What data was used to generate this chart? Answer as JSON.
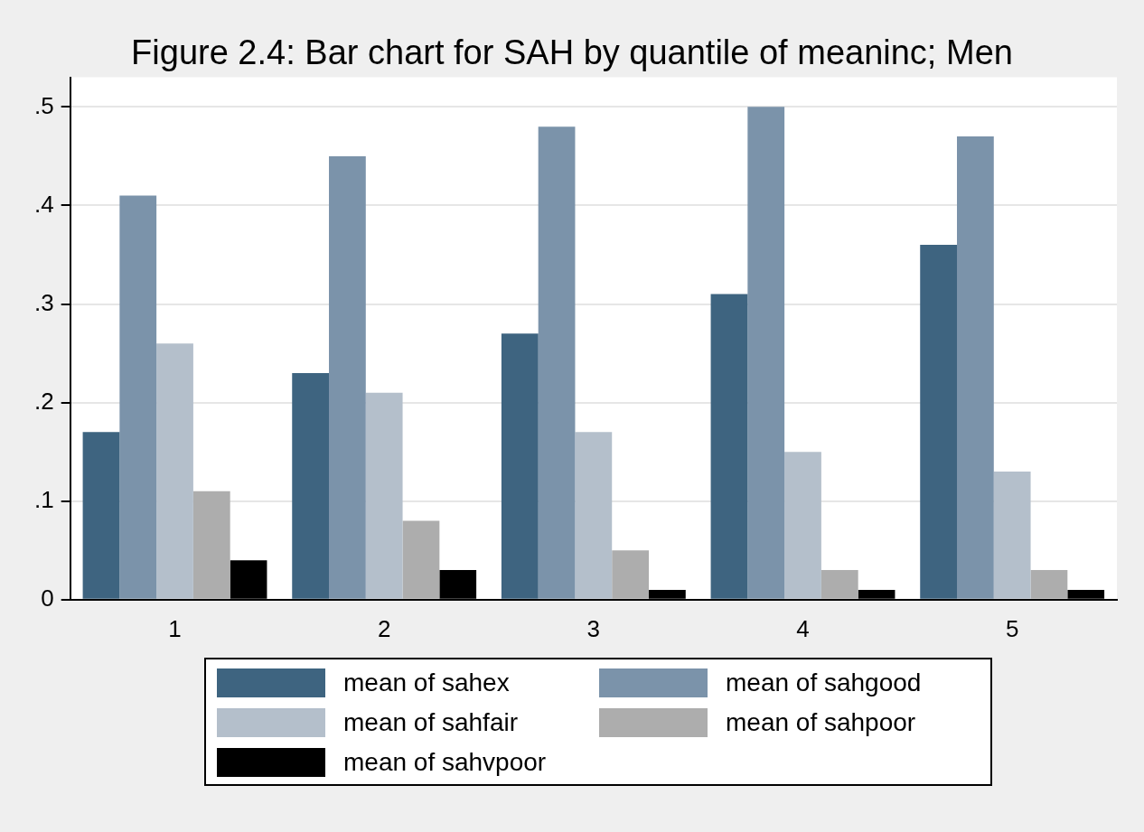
{
  "chart_data": {
    "type": "bar",
    "title": "Figure 2.4: Bar chart for SAH by quantile of meaninc; Men",
    "categories": [
      "1",
      "2",
      "3",
      "4",
      "5"
    ],
    "series": [
      {
        "name": "mean of sahex",
        "color": "#3e6480",
        "values": [
          0.17,
          0.23,
          0.27,
          0.31,
          0.36
        ]
      },
      {
        "name": "mean of sahgood",
        "color": "#7b93aa",
        "values": [
          0.41,
          0.45,
          0.48,
          0.5,
          0.47
        ]
      },
      {
        "name": "mean of sahfair",
        "color": "#b4bfcb",
        "values": [
          0.26,
          0.21,
          0.17,
          0.15,
          0.13
        ]
      },
      {
        "name": "mean of sahpoor",
        "color": "#adadad",
        "values": [
          0.11,
          0.08,
          0.05,
          0.03,
          0.03
        ]
      },
      {
        "name": "mean of sahvpoor",
        "color": "#000000",
        "values": [
          0.04,
          0.03,
          0.01,
          0.01,
          0.01
        ]
      }
    ],
    "ylim": [
      0,
      0.53
    ],
    "yticks": [
      0,
      {
        "value": 0.1,
        "label": ".1"
      },
      {
        "value": 0.2,
        "label": ".2"
      },
      {
        "value": 0.3,
        "label": ".3"
      },
      {
        "value": 0.4,
        "label": ".4"
      },
      {
        "value": 0.5,
        "label": ".5"
      }
    ],
    "grid": "y",
    "legend": "bottom"
  }
}
